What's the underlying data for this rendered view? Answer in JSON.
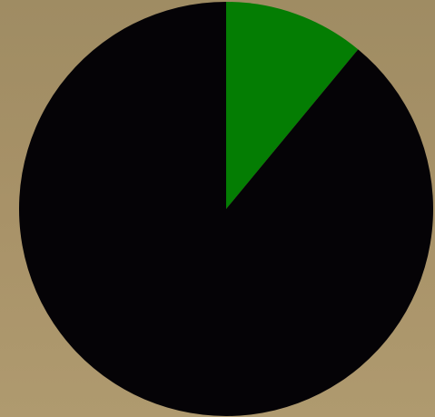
{
  "chart_data": {
    "type": "pie",
    "title": "",
    "legend": "none",
    "start_angle_deg": 0,
    "direction": "clockwise",
    "slices": [
      {
        "value": 11,
        "color": "#047d03"
      },
      {
        "value": 89,
        "color": "#050306"
      }
    ]
  },
  "colors": {
    "background": "#a89268"
  }
}
